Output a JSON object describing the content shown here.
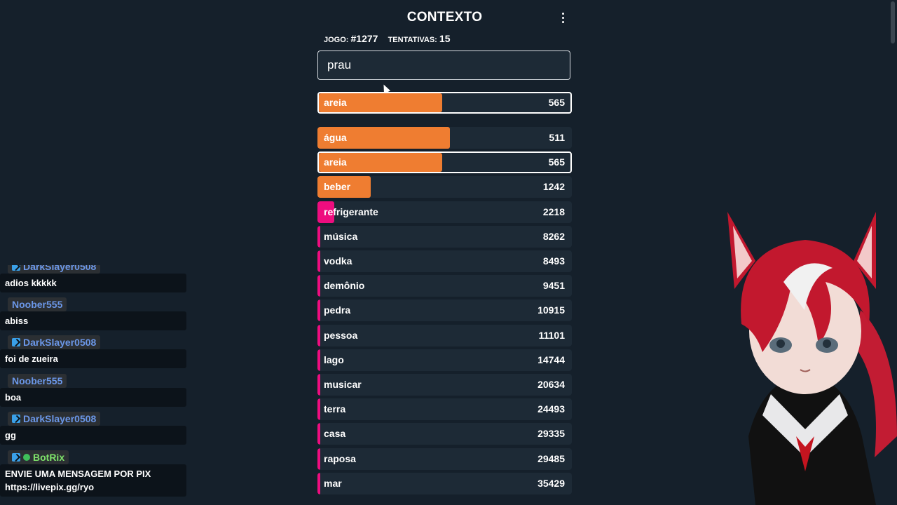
{
  "game": {
    "title": "CONTEXTO",
    "jogo_label": "JOGO:",
    "jogo_value": "#1277",
    "tentativas_label": "TENTATIVAS:",
    "tentativas_value": "15",
    "input_value": "prau",
    "last_guess": {
      "word": "areia",
      "rank": "565",
      "fill": 0.49,
      "color": "#ef7d31"
    },
    "guesses": [
      {
        "word": "água",
        "rank": "511",
        "fill": 0.52,
        "color": "#ef7d31",
        "selected": false
      },
      {
        "word": "areia",
        "rank": "565",
        "fill": 0.49,
        "color": "#ef7d31",
        "selected": true
      },
      {
        "word": "beber",
        "rank": "1242",
        "fill": 0.21,
        "color": "#ef7d31",
        "selected": false
      },
      {
        "word": "refrigerante",
        "rank": "2218",
        "fill": 0.065,
        "color": "#ee0d7f",
        "selected": false
      },
      {
        "word": "música",
        "rank": "8262",
        "fill": 0.012,
        "color": "#ee0d7f",
        "selected": false
      },
      {
        "word": "vodka",
        "rank": "8493",
        "fill": 0.012,
        "color": "#ee0d7f",
        "selected": false
      },
      {
        "word": "demônio",
        "rank": "9451",
        "fill": 0.012,
        "color": "#ee0d7f",
        "selected": false
      },
      {
        "word": "pedra",
        "rank": "10915",
        "fill": 0.011,
        "color": "#ee0d7f",
        "selected": false
      },
      {
        "word": "pessoa",
        "rank": "11101",
        "fill": 0.011,
        "color": "#ee0d7f",
        "selected": false
      },
      {
        "word": "lago",
        "rank": "14744",
        "fill": 0.011,
        "color": "#ee0d7f",
        "selected": false
      },
      {
        "word": "musicar",
        "rank": "20634",
        "fill": 0.011,
        "color": "#ee0d7f",
        "selected": false
      },
      {
        "word": "terra",
        "rank": "24493",
        "fill": 0.011,
        "color": "#ee0d7f",
        "selected": false
      },
      {
        "word": "casa",
        "rank": "29335",
        "fill": 0.011,
        "color": "#ee0d7f",
        "selected": false
      },
      {
        "word": "raposa",
        "rank": "29485",
        "fill": 0.011,
        "color": "#ee0d7f",
        "selected": false
      },
      {
        "word": "mar",
        "rank": "35429",
        "fill": 0.011,
        "color": "#ee0d7f",
        "selected": false
      }
    ]
  },
  "chat": {
    "messages": [
      {
        "user": "DarkSlayer0508",
        "badge": true,
        "text": "adios kkkkk",
        "user_color": "blue"
      },
      {
        "user": "Noober555",
        "badge": false,
        "text": "abiss",
        "user_color": "blue"
      },
      {
        "user": "DarkSlayer0508",
        "badge": true,
        "text": "foi de zueira",
        "user_color": "blue"
      },
      {
        "user": "Noober555",
        "badge": false,
        "text": "boa",
        "user_color": "blue"
      },
      {
        "user": "DarkSlayer0508",
        "badge": true,
        "text": "gg",
        "user_color": "blue"
      },
      {
        "user": "BotRix",
        "badge": true,
        "verified": true,
        "text_lines": [
          "ENVIE UMA MENSAGEM POR PIX",
          "https://livepix.gg/ryo"
        ],
        "user_color": "green"
      }
    ]
  }
}
